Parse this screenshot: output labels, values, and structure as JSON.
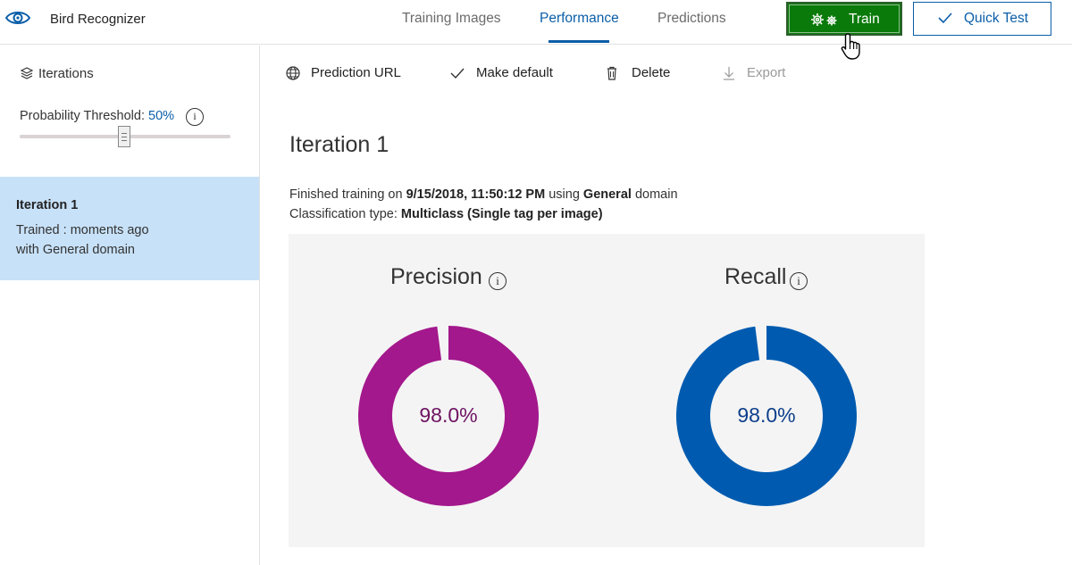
{
  "app": {
    "name": "Bird Recognizer"
  },
  "nav": {
    "tabs": [
      {
        "label": "Training Images",
        "active": false
      },
      {
        "label": "Performance",
        "active": true
      },
      {
        "label": "Predictions",
        "active": false
      }
    ]
  },
  "actions": {
    "train_label": "Train",
    "quick_test_label": "Quick Test"
  },
  "sidebar": {
    "header": "Iterations",
    "threshold": {
      "label": "Probability Threshold:",
      "value": "50%",
      "info": "i"
    },
    "iterations": [
      {
        "title": "Iteration 1",
        "line1": "Trained : moments ago",
        "line2": "with General domain",
        "selected": true
      }
    ]
  },
  "toolbar": {
    "prediction_url": "Prediction URL",
    "make_default": "Make default",
    "delete": "Delete",
    "export": "Export"
  },
  "main": {
    "title": "Iteration 1",
    "finished_prefix": "Finished training on",
    "finished_date": "9/15/2018, 11:50:12 PM",
    "using_word": "using",
    "domain": "General",
    "domain_suffix": "domain",
    "classification_prefix": "Classification type:",
    "classification_value": "Multiclass (Single tag per image)"
  },
  "metrics": [
    {
      "name": "Precision",
      "value": 0.98,
      "display": "98.0%",
      "color": "#a3188c",
      "text_color": "#6e1362",
      "info": "i"
    },
    {
      "name": "Recall",
      "value": 0.98,
      "display": "98.0%",
      "color": "#005bb0",
      "text_color": "#0d3f8a",
      "info": "i"
    }
  ],
  "colors": {
    "accent": "#0b5ea8",
    "train_button": "#0a7a0a",
    "selected_iteration": "#c7e1f8",
    "metrics_background": "#f4f4f4"
  }
}
